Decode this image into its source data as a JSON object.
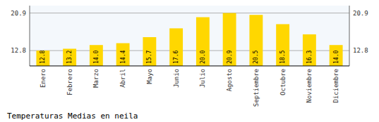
{
  "chart_data": {
    "type": "bar",
    "title": "Temperaturas Medias en neila",
    "categories": [
      "Enero",
      "Febrero",
      "Marzo",
      "Abril",
      "Mayo",
      "Junio",
      "Julio",
      "Agosto",
      "Septiembre",
      "Octubre",
      "Noviembre",
      "Diciembre"
    ],
    "values": [
      12.8,
      13.2,
      14.0,
      14.4,
      15.7,
      17.6,
      20.0,
      20.9,
      20.5,
      18.5,
      16.3,
      14.0
    ],
    "value_labels": [
      "12.8",
      "13.2",
      "14.0",
      "14.4",
      "15.7",
      "17.6",
      "20.0",
      "20.9",
      "20.5",
      "18.5",
      "16.3",
      "14.0"
    ],
    "color": "#FFD700",
    "ylim": [
      9.5,
      22.5
    ],
    "yticks": [
      12.8,
      20.9
    ],
    "y2lim": [
      9.5,
      22.5
    ],
    "y2ticks": [
      12.8,
      20.9
    ],
    "grid": true,
    "data_labels": true
  }
}
